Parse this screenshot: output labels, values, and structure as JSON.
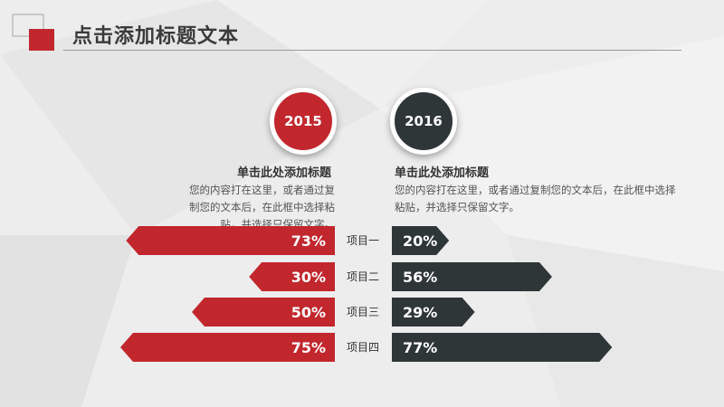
{
  "header": {
    "title": "点击添加标题文本"
  },
  "columns": [
    {
      "year": "2015",
      "heading": "单击此处添加标题",
      "text": "您的内容打在这里，或者通过复制您的文本后，在此框中选择粘贴，并选择只保留文字。",
      "color": "#c1272d"
    },
    {
      "year": "2016",
      "heading": "单击此处添加标题",
      "text": "您的内容打在这里，或者通过复制您的文本后，在此框中选择粘贴，并选择只保留文字。",
      "color": "#2f3638"
    }
  ],
  "chart_data": {
    "type": "bar",
    "categories": [
      "项目一",
      "项目二",
      "项目三",
      "项目四"
    ],
    "series": [
      {
        "name": "2015",
        "values": [
          73,
          30,
          50,
          75
        ],
        "color": "#c1272d"
      },
      {
        "name": "2016",
        "values": [
          20,
          56,
          29,
          77
        ],
        "color": "#2f3638"
      }
    ],
    "value_suffix": "%"
  }
}
